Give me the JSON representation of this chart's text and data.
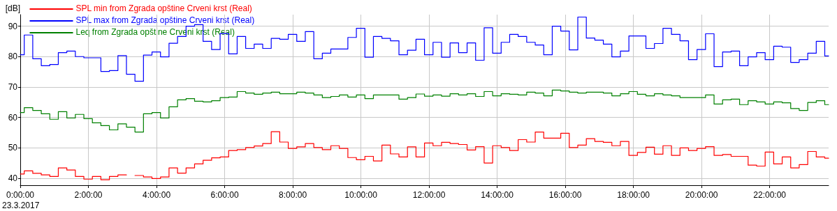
{
  "chart_data": {
    "type": "step",
    "ylabel": "[dB]",
    "annotations": [
      "23.3.2017"
    ],
    "x": [
      0,
      0.117,
      0.367,
      0.617,
      0.867,
      1.117,
      1.367,
      1.617,
      1.867,
      2.117,
      2.367,
      2.617,
      2.867,
      3.117,
      3.367,
      3.617,
      3.867,
      4.117,
      4.367,
      4.617,
      4.867,
      5.117,
      5.367,
      5.617,
      5.867,
      6.117,
      6.367,
      6.617,
      6.867,
      7.117,
      7.367,
      7.617,
      7.867,
      8.117,
      8.367,
      8.617,
      8.867,
      9.117,
      9.367,
      9.617,
      9.867,
      10.117,
      10.367,
      10.617,
      10.867,
      11.117,
      11.367,
      11.617,
      11.867,
      12.117,
      12.367,
      12.617,
      12.867,
      13.117,
      13.367,
      13.617,
      13.867,
      14.117,
      14.367,
      14.617,
      14.867,
      15.117,
      15.367,
      15.617,
      15.867,
      16.117,
      16.367,
      16.617,
      16.867,
      17.117,
      17.367,
      17.617,
      17.867,
      18.117,
      18.367,
      18.617,
      18.867,
      19.117,
      19.367,
      19.617,
      19.867,
      20.117,
      20.367,
      20.617,
      20.867,
      21.117,
      21.367,
      21.617,
      21.867,
      22.117,
      22.367,
      22.617,
      22.867,
      23.117,
      23.367,
      23.617,
      23.73
    ],
    "series": [
      {
        "name": "SPL min from Zgrada opštine Crveni krst (Real)",
        "color": "#ff0000",
        "values": [
          41.4,
          42.4,
          41.6,
          41.1,
          40.6,
          43.4,
          42.7,
          40.6,
          39.7,
          40.6,
          39.5,
          40.6,
          41.1,
          null,
          40.9,
          40.4,
          39.9,
          40.4,
          43.4,
          41.7,
          43.4,
          44.7,
          45.9,
          46.7,
          47.0,
          49.1,
          49.4,
          50.1,
          50.6,
          51.4,
          55.3,
          51.9,
          49.8,
          50.3,
          51.4,
          50.1,
          49.4,
          50.7,
          49.8,
          46.8,
          46.1,
          47.2,
          45.7,
          50.9,
          48.0,
          47.0,
          50.3,
          47.0,
          51.6,
          50.7,
          51.8,
          51.4,
          51.1,
          49.3,
          50.4,
          45.0,
          50.7,
          50.1,
          49.1,
          52.7,
          51.9,
          55.2,
          53.2,
          53.2,
          54.8,
          50.1,
          50.9,
          53.0,
          52.1,
          51.8,
          50.7,
          52.1,
          47.5,
          48.5,
          50.2,
          47.9,
          50.7,
          47.5,
          50.0,
          49.1,
          49.8,
          50.4,
          47.5,
          47.8,
          47.2,
          47.2,
          44.3,
          44.0,
          48.6,
          44.7,
          47.0,
          43.4,
          44.5,
          48.8,
          47.0,
          46.6,
          46.6
        ]
      },
      {
        "name": "SPL max from Zgrada opštine Crveni krst (Real)",
        "color": "#0000ff",
        "values": [
          80.6,
          87.1,
          79.3,
          77.0,
          77.4,
          81.3,
          81.8,
          80.0,
          79.6,
          79.6,
          75.1,
          75.4,
          80.3,
          74.2,
          71.9,
          80.5,
          81.5,
          79.9,
          84.4,
          86.6,
          90.0,
          90.5,
          85.0,
          82.3,
          87.6,
          80.9,
          86.6,
          82.7,
          84.1,
          82.7,
          86.0,
          85.7,
          87.3,
          85.0,
          88.2,
          79.3,
          81.1,
          82.5,
          82.5,
          86.3,
          89.3,
          79.8,
          86.6,
          86.0,
          85.2,
          80.6,
          82.1,
          85.7,
          80.6,
          84.7,
          79.8,
          84.5,
          81.3,
          84.5,
          78.8,
          89.5,
          81.1,
          84.7,
          87.3,
          86.6,
          84.7,
          83.8,
          80.6,
          90.0,
          88.4,
          82.2,
          93.0,
          86.1,
          85.4,
          84.1,
          79.9,
          81.8,
          86.8,
          86.8,
          82.7,
          84.3,
          89.3,
          87.3,
          85.2,
          79.0,
          82.3,
          87.5,
          76.7,
          81.5,
          81.8,
          77.0,
          79.9,
          81.3,
          79.0,
          83.4,
          83.1,
          78.1,
          79.0,
          81.1,
          85.0,
          80.2,
          80.2
        ]
      },
      {
        "name": "Leq from Zgrada opštine Crveni krst (Real)",
        "color": "#008000",
        "values": [
          61.6,
          63.2,
          62.3,
          61.2,
          59.4,
          61.9,
          59.8,
          61.0,
          59.6,
          58.2,
          57.3,
          55.9,
          57.9,
          56.8,
          55.2,
          61.2,
          61.6,
          59.8,
          63.5,
          65.8,
          66.2,
          65.3,
          65.1,
          65.5,
          66.5,
          66.7,
          68.5,
          68.0,
          67.6,
          68.0,
          68.3,
          67.8,
          67.8,
          68.3,
          68.0,
          67.4,
          66.5,
          66.9,
          67.4,
          66.7,
          67.4,
          66.2,
          67.4,
          67.4,
          67.4,
          66.0,
          66.5,
          67.7,
          67.0,
          67.4,
          67.0,
          67.8,
          67.4,
          67.8,
          66.9,
          68.5,
          67.1,
          67.8,
          67.6,
          67.4,
          68.3,
          68.0,
          67.1,
          69.0,
          68.7,
          68.3,
          68.0,
          68.3,
          68.3,
          68.0,
          67.1,
          67.8,
          68.5,
          67.6,
          67.1,
          67.8,
          67.4,
          67.1,
          66.5,
          66.5,
          66.5,
          67.4,
          64.4,
          65.8,
          66.0,
          64.2,
          65.5,
          65.1,
          64.4,
          65.1,
          64.8,
          62.9,
          62.3,
          64.9,
          65.5,
          64.2,
          64.2
        ]
      }
    ],
    "xlim": [
      0,
      23.73
    ],
    "xticks": [
      {
        "value": 0,
        "label": "0:00:00"
      },
      {
        "value": 2,
        "label": "2:00:00"
      },
      {
        "value": 4,
        "label": "4:00:00"
      },
      {
        "value": 6,
        "label": "6:00:00"
      },
      {
        "value": 8,
        "label": "8:00:00"
      },
      {
        "value": 10,
        "label": "10:00:00"
      },
      {
        "value": 12,
        "label": "12:00:00"
      },
      {
        "value": 14,
        "label": "14:00:00"
      },
      {
        "value": 16,
        "label": "16:00:00"
      },
      {
        "value": 18,
        "label": "18:00:00"
      },
      {
        "value": 20,
        "label": "20:00:00"
      },
      {
        "value": 22,
        "label": "22:00:00"
      }
    ],
    "ylim": [
      37.7,
      93.8
    ],
    "yticks": [
      40,
      50,
      60,
      70,
      80,
      90
    ],
    "grid": true,
    "legend": "top left",
    "marker": "none",
    "line_style": "solid"
  }
}
